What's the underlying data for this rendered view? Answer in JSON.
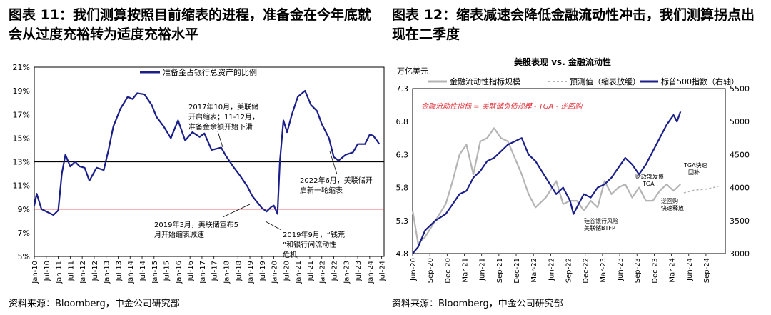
{
  "figure1": {
    "title": "图表 11：我们测算按照目前缩表的进程，准备金在今年底就会从过度充裕转为适度充裕水平",
    "source": "资料来源：Bloomberg，中金公司研究部"
  },
  "figure2": {
    "title": "图表 12：缩表减速会降低金融流动性冲击，我们测算拐点出现在二季度",
    "source": "资料来源：Bloomberg，中金公司研究部"
  },
  "chart_data": [
    {
      "type": "line",
      "legend": [
        "准备金占银行总资产的比例"
      ],
      "ylim": [
        5,
        21
      ],
      "y_ticks": [
        "21%",
        "19%",
        "17%",
        "15%",
        "13%",
        "11%",
        "9%",
        "7%",
        "5%"
      ],
      "x_ticks": [
        "Jan-10",
        "Jul-10",
        "Jan-11",
        "Jul-11",
        "Jan-12",
        "Jul-12",
        "Jan-13",
        "Jul-13",
        "Jan-14",
        "Jul-14",
        "Jan-15",
        "Jul-15",
        "Jan-16",
        "Jul-16",
        "Jan-17",
        "Jul-17",
        "Jan-18",
        "Jul-18",
        "Jan-19",
        "Jul-19",
        "Jan-20",
        "Jul-20",
        "Jan-21",
        "Jul-21",
        "Jan-22",
        "Jul-22",
        "Jan-23",
        "Jul-23",
        "Jan-24",
        "Jul-24"
      ],
      "reference_lines": [
        {
          "y": 13,
          "color": "#000000"
        },
        {
          "y": 9,
          "color": "#e0303a"
        }
      ],
      "series": [
        {
          "name": "准备金占银行总资产的比例",
          "color": "#1b1f8a",
          "x": [
            2010.0,
            2010.1,
            2010.3,
            2010.6,
            2010.8,
            2011.0,
            2011.15,
            2011.3,
            2011.5,
            2011.7,
            2011.9,
            2012.1,
            2012.3,
            2012.6,
            2012.9,
            2013.1,
            2013.3,
            2013.6,
            2013.9,
            2014.1,
            2014.3,
            2014.6,
            2014.9,
            2015.1,
            2015.4,
            2015.7,
            2016.0,
            2016.3,
            2016.6,
            2016.9,
            2017.1,
            2017.4,
            2017.8,
            2018.0,
            2018.3,
            2018.6,
            2018.9,
            2019.1,
            2019.3,
            2019.5,
            2019.7,
            2019.9,
            2020.0,
            2020.15,
            2020.25,
            2020.4,
            2020.55,
            2020.75,
            2021.0,
            2021.3,
            2021.55,
            2021.8,
            2022.0,
            2022.3,
            2022.5,
            2022.7,
            2023.0,
            2023.3,
            2023.5,
            2023.8,
            2024.0,
            2024.15,
            2024.3,
            2024.4
          ],
          "y": [
            9.3,
            10.3,
            9.0,
            8.7,
            8.5,
            8.9,
            12.0,
            13.6,
            12.6,
            13.0,
            12.6,
            12.5,
            11.4,
            12.5,
            12.3,
            14.0,
            16.0,
            17.5,
            18.5,
            18.3,
            18.8,
            18.7,
            17.8,
            16.8,
            16.0,
            15.0,
            16.5,
            14.8,
            15.5,
            15.1,
            15.4,
            14.0,
            14.2,
            13.5,
            12.6,
            11.8,
            10.9,
            10.1,
            9.6,
            9.1,
            8.8,
            9.2,
            9.3,
            8.6,
            13.0,
            16.5,
            15.5,
            17.0,
            18.5,
            19.0,
            17.8,
            17.3,
            16.2,
            15.0,
            13.4,
            13.1,
            13.6,
            13.8,
            14.5,
            14.5,
            15.3,
            15.2,
            14.8,
            14.5
          ]
        }
      ],
      "annotations": [
        "2017年10月，美联储开启缩表；11-12月，准备金余额开始下滑",
        "2022年6月，美联储开启新一轮缩表",
        "2019年3月，美联储宣布5月开始缩表减速",
        "2019年9月，“钱荒”和银行间流动性危机"
      ]
    },
    {
      "type": "line",
      "title": "美股表现 vs. 金融流动性",
      "ylabel": "万亿美元",
      "ylim": [
        4.8,
        7.3
      ],
      "y2lim": [
        3000,
        5500
      ],
      "y_ticks": [
        "7.3",
        "6.8",
        "6.3",
        "5.8",
        "5.3",
        "4.8"
      ],
      "y2_ticks": [
        "5500",
        "5000",
        "4500",
        "4000",
        "3500",
        "3000"
      ],
      "x_ticks": [
        "Jun-20",
        "Sep-20",
        "Dec-20",
        "Mar-21",
        "Jun-21",
        "Sep-21",
        "Dec-21",
        "Mar-22",
        "Jun-22",
        "Sep-22",
        "Dec-22",
        "Mar-23",
        "Jun-23",
        "Sep-23",
        "Dec-23",
        "Mar-24",
        "Jun-24",
        "Sep-24"
      ],
      "legend": [
        "金融流动性指标规模",
        "预测值（缩表放缓）",
        "标普500指数（右轴）"
      ],
      "formula": "金融流动性指标 = 美联储负债规模 - TGA - 逆回购",
      "series": [
        {
          "name": "金融流动性指标规模",
          "axis": "left",
          "color": "#b4b4b4",
          "x": [
            2020.42,
            2020.5,
            2020.6,
            2020.75,
            2020.9,
            2021.0,
            2021.1,
            2021.2,
            2021.3,
            2021.4,
            2021.5,
            2021.6,
            2021.7,
            2021.8,
            2021.9,
            2022.0,
            2022.1,
            2022.2,
            2022.35,
            2022.5,
            2022.6,
            2022.7,
            2022.8,
            2022.9,
            2023.0,
            2023.1,
            2023.2,
            2023.3,
            2023.4,
            2023.5,
            2023.6,
            2023.7,
            2023.8,
            2023.9,
            2024.0,
            2024.1,
            2024.2,
            2024.3
          ],
          "y": [
            5.45,
            4.95,
            5.05,
            5.3,
            5.55,
            5.9,
            6.3,
            6.45,
            6.0,
            6.5,
            6.55,
            6.7,
            6.55,
            6.5,
            6.25,
            6.0,
            5.7,
            5.5,
            5.65,
            5.9,
            5.55,
            5.6,
            5.6,
            5.45,
            5.6,
            5.5,
            5.9,
            5.7,
            5.8,
            5.85,
            5.65,
            5.8,
            5.6,
            5.6,
            5.75,
            5.85,
            5.75,
            5.85
          ]
        },
        {
          "name": "预测值（缩表放缓）",
          "axis": "left",
          "color": "#b4b4b4",
          "dashed": true,
          "x": [
            2024.35,
            2024.5,
            2024.7,
            2024.85
          ],
          "y": [
            5.72,
            5.76,
            5.78,
            5.82
          ]
        },
        {
          "name": "标普500指数（右轴）",
          "axis": "right",
          "color": "#1b1f8a",
          "x": [
            2020.42,
            2020.5,
            2020.6,
            2020.75,
            2020.9,
            2021.0,
            2021.1,
            2021.2,
            2021.3,
            2021.4,
            2021.5,
            2021.6,
            2021.7,
            2021.8,
            2021.9,
            2022.0,
            2022.1,
            2022.2,
            2022.35,
            2022.5,
            2022.6,
            2022.7,
            2022.75,
            2022.8,
            2022.9,
            2023.0,
            2023.1,
            2023.2,
            2023.3,
            2023.4,
            2023.5,
            2023.6,
            2023.7,
            2023.8,
            2023.9,
            2024.0,
            2024.1,
            2024.2,
            2024.25,
            2024.3
          ],
          "y": [
            3000,
            3100,
            3350,
            3500,
            3600,
            3750,
            3900,
            3950,
            4150,
            4250,
            4400,
            4450,
            4550,
            4650,
            4700,
            4750,
            4500,
            4400,
            4150,
            3900,
            4000,
            3800,
            3600,
            3700,
            3900,
            3850,
            4000,
            4050,
            4150,
            4300,
            4450,
            4350,
            4200,
            4350,
            4550,
            4750,
            4950,
            5100,
            5000,
            5150
          ]
        }
      ],
      "annotations": [
        "TGA快速回补",
        "财政部发债TGA",
        "硅谷银行风险美联储BTFP",
        "逆回购快速释放"
      ]
    }
  ]
}
